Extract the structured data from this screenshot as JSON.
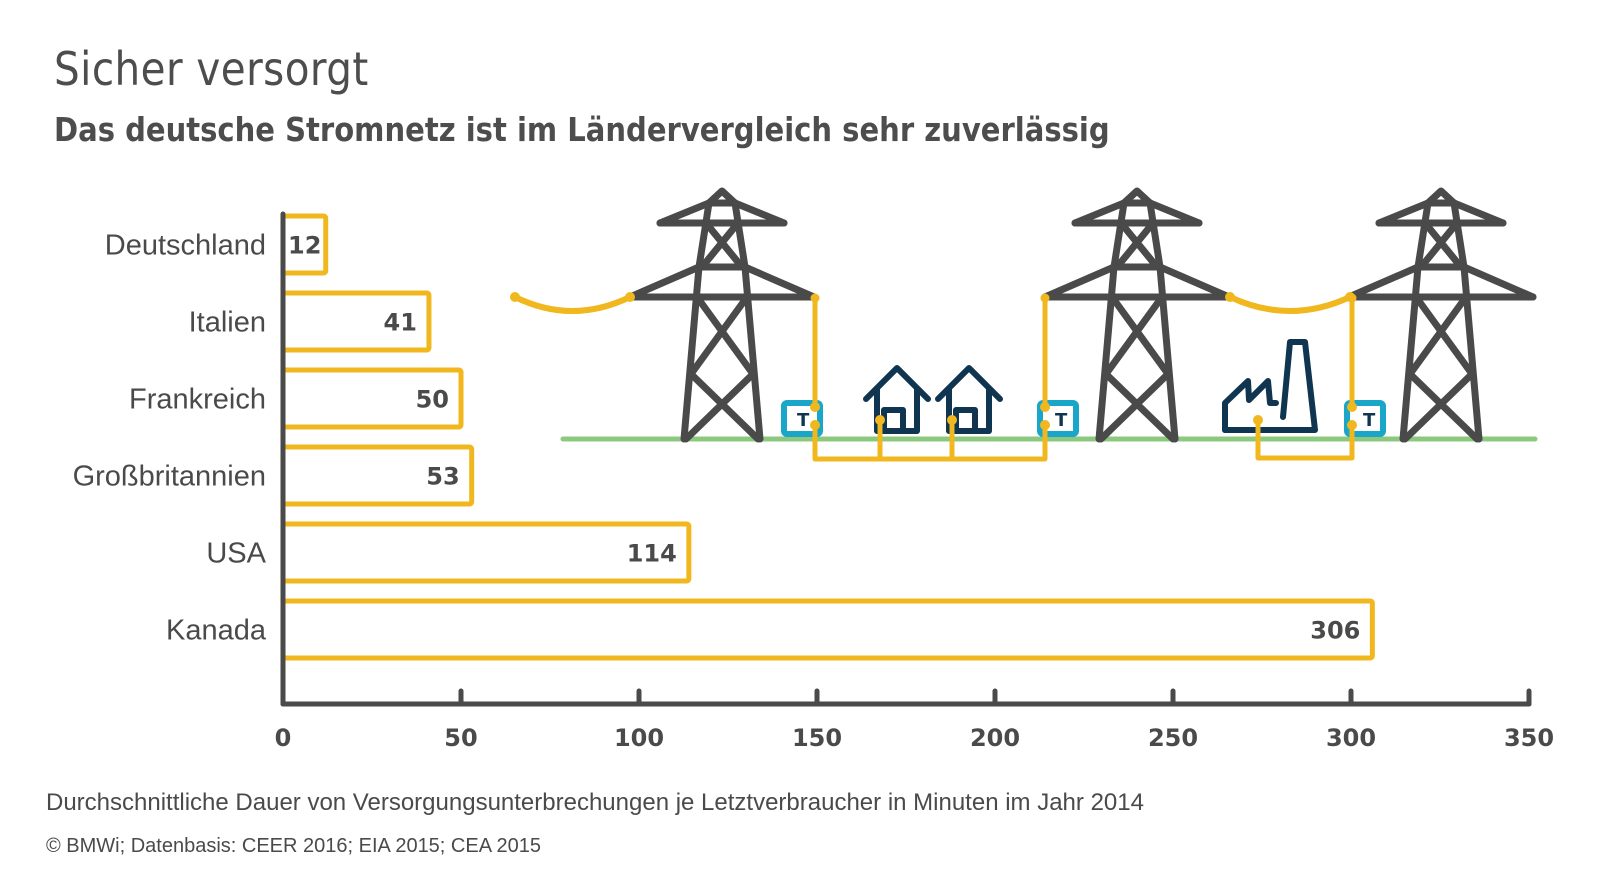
{
  "header": {
    "title": "Sicher versorgt",
    "subtitle": "Das deutsche Stromnetz ist im Ländervergleich sehr zuverlässig"
  },
  "footer": {
    "caption": "Durchschnittliche Dauer von Versorgungsunterbrechungen je Letztverbraucher in Minuten im Jahr 2014",
    "source": "© BMWi; Datenbasis: CEER 2016; EIA 2015; CEA 2015"
  },
  "colors": {
    "bar_outline": "#f0b81e",
    "axis": "#4a4a4a",
    "tower": "#4a4a4a",
    "ground": "#8dc87f",
    "cable": "#f0b81e",
    "transformer": "#1aa6c8",
    "buildings": "#0f3550",
    "text": "#4a4a4a"
  },
  "illustration": {
    "transformer_label": "T",
    "elements": [
      "power-tower",
      "power-tower",
      "power-tower",
      "house",
      "house",
      "factory",
      "transformer",
      "transformer",
      "transformer"
    ]
  },
  "chart_data": {
    "type": "bar",
    "orientation": "horizontal",
    "title": "Sicher versorgt",
    "subtitle": "Das deutsche Stromnetz ist im Ländervergleich sehr zuverlässig",
    "categories": [
      "Deutschland",
      "Italien",
      "Frankreich",
      "Großbritannien",
      "USA",
      "Kanada"
    ],
    "values": [
      12,
      41,
      50,
      53,
      114,
      306
    ],
    "value_labels": [
      "12",
      "41",
      "50",
      "53",
      "114",
      "306"
    ],
    "xlabel": "Durchschnittliche Dauer von Versorgungsunterbrechungen je Letztverbraucher in Minuten im Jahr 2014",
    "ylabel": "",
    "xlim": [
      0,
      350
    ],
    "xticks": [
      0,
      50,
      100,
      150,
      200,
      250,
      300,
      350
    ],
    "xtick_labels": [
      "0",
      "50",
      "100",
      "150",
      "200",
      "250",
      "300",
      "350"
    ],
    "grid": false,
    "legend": null,
    "unit": "Minuten"
  }
}
